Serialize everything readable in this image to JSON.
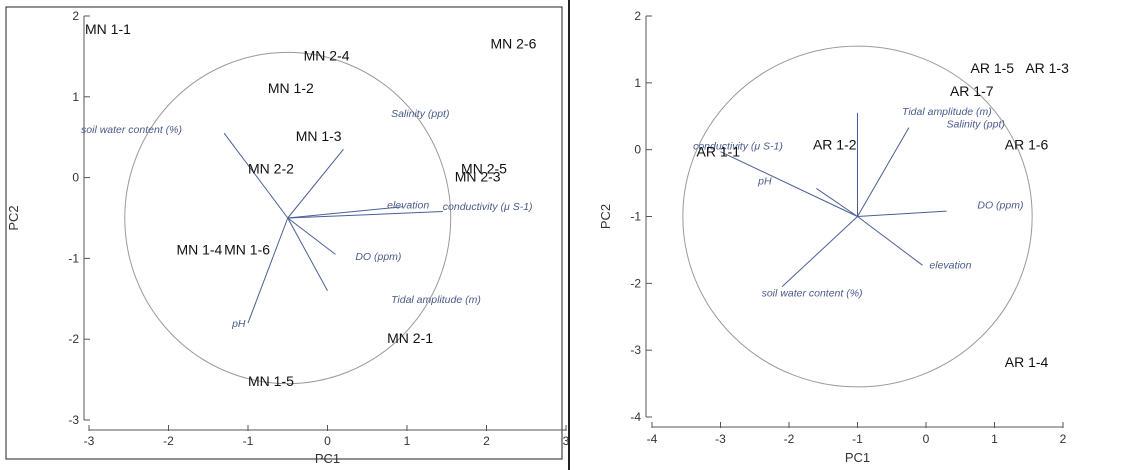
{
  "colors": {
    "axis": "#555555",
    "circle": "#9a9a9a",
    "vector": "#4a5f96",
    "site_text": "#111111",
    "var_text": "#4a5a8a",
    "divider": "#222222"
  },
  "chart_data": [
    {
      "type": "scatter",
      "xlabel": "PC1",
      "ylabel": "PC2",
      "xlim": [
        -3,
        3
      ],
      "ylim": [
        -3,
        2
      ],
      "xticks": [
        "-3",
        "-2",
        "-1",
        "0",
        "1",
        "2",
        "3"
      ],
      "yticks": [
        "-3",
        "-2",
        "-1",
        "0",
        "1",
        "2"
      ],
      "correlation_circle": {
        "center": [
          -0.5,
          -0.5
        ],
        "radius_x": 2.05,
        "radius_y": 2.05
      },
      "sites": [
        {
          "label": "MN 1-1",
          "x": -3.05,
          "y": 1.78
        },
        {
          "label": "MN 2-4",
          "x": -0.3,
          "y": 1.45
        },
        {
          "label": "MN 2-6",
          "x": 2.05,
          "y": 1.6
        },
        {
          "label": "MN 1-2",
          "x": -0.75,
          "y": 1.05
        },
        {
          "label": "MN 1-3",
          "x": -0.4,
          "y": 0.45
        },
        {
          "label": "MN 2-2",
          "x": -1.0,
          "y": 0.05
        },
        {
          "label": "MN 2-5",
          "x": 1.68,
          "y": 0.05
        },
        {
          "label": "MN 2-3",
          "x": 1.6,
          "y": -0.05
        },
        {
          "label": "MN 1-4",
          "x": -1.9,
          "y": -0.95
        },
        {
          "label": "MN 1-6",
          "x": -1.3,
          "y": -0.95
        },
        {
          "label": "MN 2-1",
          "x": 0.75,
          "y": -2.05
        },
        {
          "label": "MN 1-5",
          "x": -1.0,
          "y": -2.58
        }
      ],
      "vectors": [
        {
          "label": "soil water content (%)",
          "x": -3.1,
          "y": 0.55,
          "vx": -1.3,
          "vy": 0.55
        },
        {
          "label": "Salinity (ppt)",
          "x": 0.8,
          "y": 0.75,
          "vx": 0.2,
          "vy": 0.35
        },
        {
          "label": "conductivity (μ S-1)",
          "x": 1.45,
          "y": -0.4,
          "vx": 1.45,
          "vy": -0.42
        },
        {
          "label": "elevation",
          "x": 0.75,
          "y": -0.38,
          "vx": 0.95,
          "vy": -0.36
        },
        {
          "label": "DO (ppm)",
          "x": 0.35,
          "y": -1.02,
          "vx": 0.1,
          "vy": -0.95
        },
        {
          "label": "Tidal amplitude (m)",
          "x": 0.8,
          "y": -1.55,
          "vx": 0.0,
          "vy": -1.4
        },
        {
          "label": "pH",
          "x": -1.2,
          "y": -1.85,
          "vx": -1.0,
          "vy": -1.8
        }
      ]
    },
    {
      "type": "scatter",
      "xlabel": "PC1",
      "ylabel": "PC2",
      "xlim": [
        -4,
        2
      ],
      "ylim": [
        -4,
        2
      ],
      "xticks": [
        "-4",
        "-3",
        "-2",
        "-1",
        "0",
        "1",
        "2"
      ],
      "yticks": [
        "-4",
        "-3",
        "-2",
        "-1",
        "0",
        "1",
        "2"
      ],
      "correlation_circle": {
        "center": [
          -1,
          -1
        ],
        "radius_x": 2.55,
        "radius_y": 2.55
      },
      "sites": [
        {
          "label": "AR 1-5",
          "x": 0.65,
          "y": 1.15
        },
        {
          "label": "AR 1-3",
          "x": 1.45,
          "y": 1.15
        },
        {
          "label": "AR 1-7",
          "x": 0.35,
          "y": 0.8
        },
        {
          "label": "AR 1-2",
          "x": -1.65,
          "y": 0.0
        },
        {
          "label": "AR 1-6",
          "x": 1.15,
          "y": 0.0
        },
        {
          "label": "AR 1-1",
          "x": -3.35,
          "y": -0.1
        },
        {
          "label": "AR 1-4",
          "x": 1.15,
          "y": -3.25
        }
      ],
      "vectors": [
        {
          "label": "Tidal amplitude (m)",
          "x": -0.35,
          "y": 0.52,
          "vx": -1.0,
          "vy": 0.55
        },
        {
          "label": "Salinity (ppt)",
          "x": 0.3,
          "y": 0.33,
          "vx": -0.25,
          "vy": 0.33
        },
        {
          "label": "conductivity (μ S-1)",
          "x": -3.4,
          "y": 0.0,
          "vx": -3.0,
          "vy": -0.03
        },
        {
          "label": "pH",
          "x": -2.45,
          "y": -0.52,
          "vx": -1.6,
          "vy": -0.58
        },
        {
          "label": "DO (ppm)",
          "x": 0.75,
          "y": -0.88,
          "vx": 0.3,
          "vy": -0.92
        },
        {
          "label": "elevation",
          "x": 0.05,
          "y": -1.78,
          "vx": -0.05,
          "vy": -1.73
        },
        {
          "label": "soil water content (%)",
          "x": -2.4,
          "y": -2.2,
          "vx": -2.1,
          "vy": -2.05
        }
      ]
    }
  ]
}
